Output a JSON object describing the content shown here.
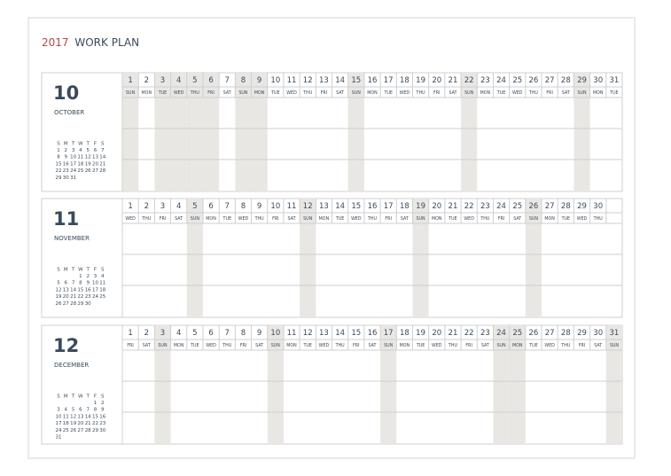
{
  "title": {
    "year": "2017",
    "text": "WORK PLAN"
  },
  "months": [
    {
      "number": "10",
      "name": "OCTOBER",
      "days": [
        1,
        2,
        3,
        4,
        5,
        6,
        7,
        8,
        9,
        10,
        11,
        12,
        13,
        14,
        15,
        16,
        17,
        18,
        19,
        20,
        21,
        22,
        23,
        24,
        25,
        26,
        27,
        28,
        29,
        30,
        31
      ],
      "weekdays": [
        "SUN",
        "MON",
        "TUE",
        "WED",
        "THU",
        "FRI",
        "SAT",
        "SUN",
        "MON",
        "TUE",
        "WED",
        "THU",
        "FRI",
        "SAT",
        "SUN",
        "MON",
        "TUE",
        "WED",
        "THU",
        "FRI",
        "SAT",
        "SUN",
        "MON",
        "TUE",
        "WED",
        "THU",
        "FRI",
        "SAT",
        "SUN",
        "MON",
        "TUE"
      ],
      "off": [
        true,
        false,
        true,
        true,
        true,
        true,
        false,
        true,
        true,
        false,
        false,
        false,
        false,
        false,
        true,
        false,
        false,
        false,
        false,
        false,
        false,
        true,
        false,
        false,
        false,
        false,
        false,
        false,
        true,
        false,
        false
      ],
      "mini_header": [
        "S",
        "M",
        "T",
        "W",
        "T",
        "F",
        "S"
      ],
      "mini_weeks": [
        [
          1,
          2,
          3,
          4,
          5,
          6,
          7
        ],
        [
          8,
          9,
          10,
          11,
          12,
          13,
          14
        ],
        [
          15,
          16,
          17,
          18,
          19,
          20,
          21
        ],
        [
          22,
          23,
          24,
          25,
          26,
          27,
          28
        ],
        [
          29,
          30,
          31
        ]
      ]
    },
    {
      "number": "11",
      "name": "NOVEMBER",
      "days": [
        1,
        2,
        3,
        4,
        5,
        6,
        7,
        8,
        9,
        10,
        11,
        12,
        13,
        14,
        15,
        16,
        17,
        18,
        19,
        20,
        21,
        22,
        23,
        24,
        25,
        26,
        27,
        28,
        29,
        30
      ],
      "weekdays": [
        "WED",
        "THU",
        "FRI",
        "SAT",
        "SUN",
        "MON",
        "TUE",
        "WED",
        "THU",
        "FRI",
        "SAT",
        "SUN",
        "MON",
        "TUE",
        "WED",
        "THU",
        "FRI",
        "SAT",
        "SUN",
        "MON",
        "TUE",
        "WED",
        "THU",
        "FRI",
        "SAT",
        "SUN",
        "MON",
        "TUE",
        "WED",
        "THU"
      ],
      "off": [
        false,
        false,
        false,
        false,
        true,
        false,
        false,
        false,
        false,
        false,
        false,
        true,
        false,
        false,
        false,
        false,
        false,
        false,
        true,
        false,
        false,
        false,
        false,
        false,
        false,
        true,
        false,
        false,
        false,
        false
      ],
      "mini_header": [
        "S",
        "M",
        "T",
        "W",
        "T",
        "F",
        "S"
      ],
      "mini_weeks": [
        [
          null,
          null,
          null,
          1,
          2,
          3,
          4
        ],
        [
          5,
          6,
          7,
          8,
          9,
          10,
          11
        ],
        [
          12,
          13,
          14,
          15,
          16,
          17,
          18
        ],
        [
          19,
          20,
          21,
          22,
          23,
          24,
          25
        ],
        [
          26,
          27,
          28,
          29,
          30
        ]
      ]
    },
    {
      "number": "12",
      "name": "DECEMBER",
      "days": [
        1,
        2,
        3,
        4,
        5,
        6,
        7,
        8,
        9,
        10,
        11,
        12,
        13,
        14,
        15,
        16,
        17,
        18,
        19,
        20,
        21,
        22,
        23,
        24,
        25,
        26,
        27,
        28,
        29,
        30,
        31
      ],
      "weekdays": [
        "FRI",
        "SAT",
        "SUN",
        "MON",
        "TUE",
        "WED",
        "THU",
        "FRI",
        "SAT",
        "SUN",
        "MON",
        "TUE",
        "WED",
        "THU",
        "FRI",
        "SAT",
        "SUN",
        "MON",
        "TUE",
        "WED",
        "THU",
        "FRI",
        "SAT",
        "SUN",
        "MON",
        "TUE",
        "WED",
        "THU",
        "FRI",
        "SAT",
        "SUN"
      ],
      "off": [
        false,
        false,
        true,
        false,
        false,
        false,
        false,
        false,
        false,
        true,
        false,
        false,
        false,
        false,
        false,
        false,
        true,
        false,
        false,
        false,
        false,
        false,
        false,
        true,
        true,
        false,
        false,
        false,
        false,
        false,
        true
      ],
      "mini_header": [
        "S",
        "M",
        "T",
        "W",
        "T",
        "F",
        "S"
      ],
      "mini_weeks": [
        [
          null,
          null,
          null,
          null,
          null,
          1,
          2
        ],
        [
          3,
          4,
          5,
          6,
          7,
          8,
          9
        ],
        [
          10,
          11,
          12,
          13,
          14,
          15,
          16
        ],
        [
          17,
          18,
          19,
          20,
          21,
          22,
          23
        ],
        [
          24,
          25,
          26,
          27,
          28,
          29,
          30
        ],
        [
          31
        ]
      ]
    }
  ]
}
